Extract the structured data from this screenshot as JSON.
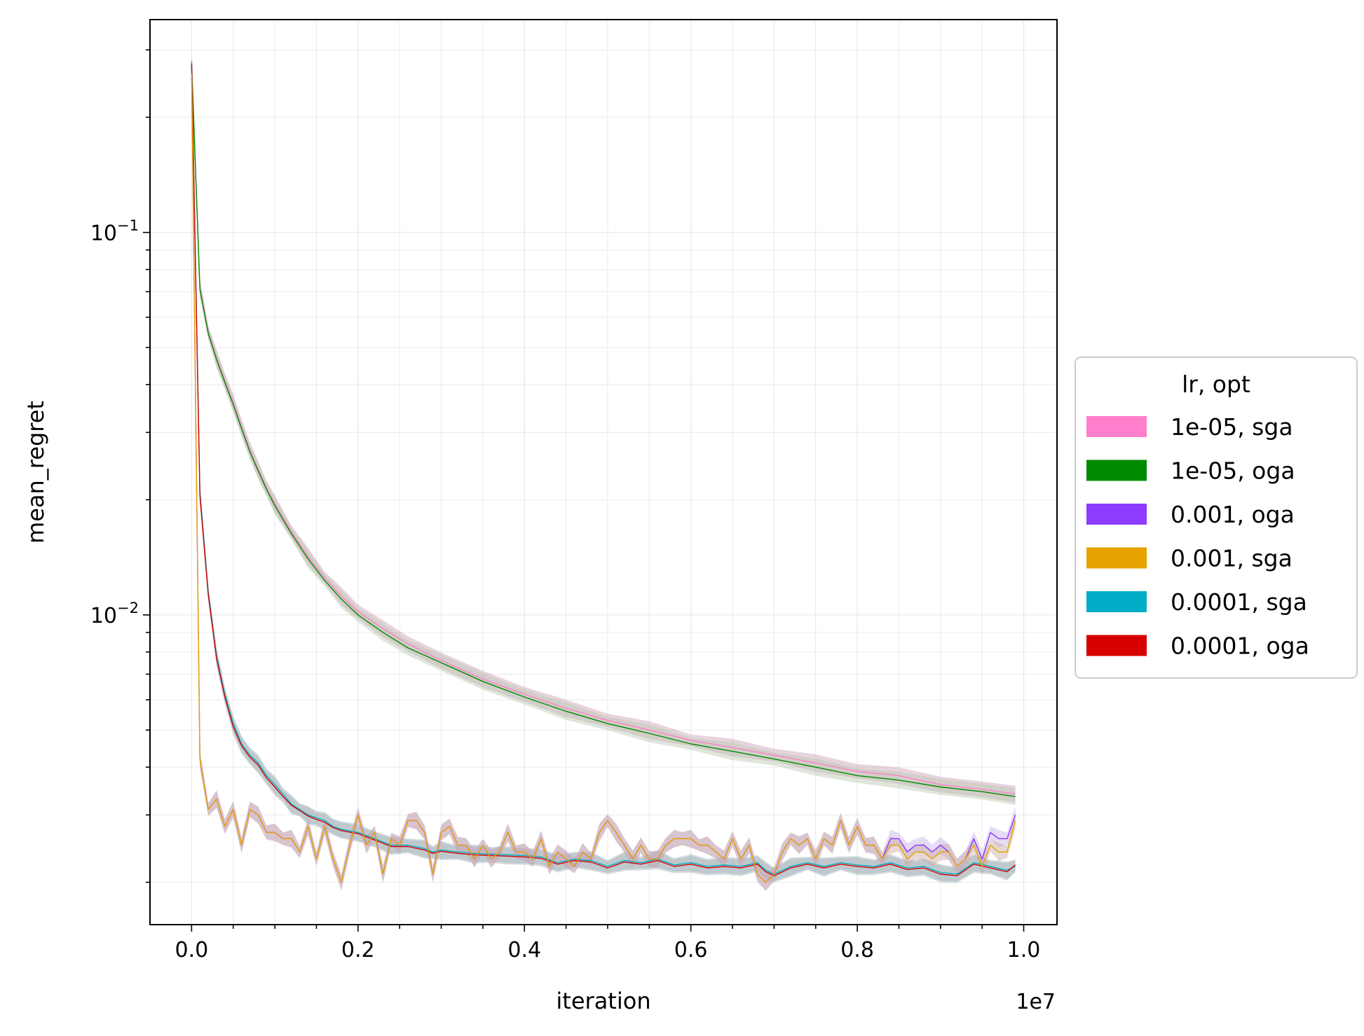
{
  "chart_data": {
    "type": "line",
    "xlabel": "iteration",
    "ylabel": "mean_regret",
    "x_offset_label": "1e7",
    "x_tick_labels": [
      "0.0",
      "0.2",
      "0.4",
      "0.6",
      "0.8",
      "1.0"
    ],
    "x_ticks": [
      0,
      2000000,
      4000000,
      6000000,
      8000000,
      10000000
    ],
    "xlim": [
      -500000,
      10400000
    ],
    "y_scale": "log",
    "ylim": [
      0.00155,
      0.36
    ],
    "y_tick_labels": [
      {
        "base": "10",
        "exp": "−1",
        "value": 0.1
      },
      {
        "base": "10",
        "exp": "−2",
        "value": 0.01
      }
    ],
    "grid": true,
    "legend": {
      "title": "lr, opt",
      "placement": "center-right-outside",
      "entries": [
        {
          "label": "1e-05, sga",
          "color": "#ff7fcc"
        },
        {
          "label": "1e-05, oga",
          "color": "#008a00"
        },
        {
          "label": "0.001, oga",
          "color": "#8c3bff"
        },
        {
          "label": "0.001, sga",
          "color": "#e8a200"
        },
        {
          "label": "0.0001, sga",
          "color": "#00acc6"
        },
        {
          "label": "0.0001, oga",
          "color": "#d60000"
        }
      ]
    },
    "series": [
      {
        "name": "1e-05, sga",
        "color": "#ff7fcc",
        "band": "#c9a0b4",
        "x": [
          0,
          100000,
          200000,
          300000,
          400000,
          500000,
          600000,
          700000,
          800000,
          900000,
          1000000,
          1200000,
          1400000,
          1600000,
          1800000,
          2000000,
          2300000,
          2600000,
          3000000,
          3500000,
          4000000,
          4500000,
          5000000,
          5500000,
          6000000,
          6500000,
          7000000,
          7500000,
          8000000,
          8500000,
          9000000,
          9500000,
          9900000
        ],
        "y": [
          0.28,
          0.072,
          0.055,
          0.047,
          0.041,
          0.036,
          0.031,
          0.027,
          0.024,
          0.0215,
          0.0195,
          0.0165,
          0.0142,
          0.0125,
          0.0112,
          0.0102,
          0.0092,
          0.0084,
          0.0076,
          0.0068,
          0.0062,
          0.0057,
          0.0053,
          0.005,
          0.0047,
          0.0045,
          0.0043,
          0.0041,
          0.0039,
          0.0038,
          0.0036,
          0.0035,
          0.0034
        ]
      },
      {
        "name": "1e-05, oga",
        "color": "#008a00",
        "band": "#b8c8b0",
        "x": [
          0,
          100000,
          200000,
          300000,
          400000,
          500000,
          600000,
          700000,
          800000,
          900000,
          1000000,
          1200000,
          1400000,
          1600000,
          1800000,
          2000000,
          2300000,
          2600000,
          3000000,
          3500000,
          4000000,
          4500000,
          5000000,
          5500000,
          6000000,
          6500000,
          7000000,
          7500000,
          8000000,
          8500000,
          9000000,
          9500000,
          9900000
        ],
        "y": [
          0.275,
          0.071,
          0.0545,
          0.0465,
          0.0405,
          0.0355,
          0.0307,
          0.0267,
          0.0238,
          0.0213,
          0.0193,
          0.0163,
          0.014,
          0.0123,
          0.011,
          0.01,
          0.009,
          0.0082,
          0.0075,
          0.0067,
          0.0061,
          0.0056,
          0.0052,
          0.0049,
          0.0046,
          0.0044,
          0.0042,
          0.004,
          0.0038,
          0.0037,
          0.00355,
          0.00345,
          0.00335
        ]
      },
      {
        "name": "0.0001, sga",
        "color": "#00acc6",
        "band": "#9ab0b8",
        "x": [
          0,
          100000,
          200000,
          300000,
          400000,
          500000,
          600000,
          700000,
          800000,
          900000,
          1000000,
          1100000,
          1200000,
          1300000,
          1400000,
          1500000,
          1600000,
          1700000,
          1800000,
          2000000,
          2200000,
          2400000,
          2600000,
          2800000,
          2900000,
          3000000,
          3200000,
          3400000,
          3600000,
          3800000,
          4000000,
          4200000,
          4400000,
          4600000,
          4800000,
          5000000,
          5200000,
          5400000,
          5600000,
          5800000,
          6000000,
          6200000,
          6400000,
          6600000,
          6800000,
          6900000,
          7000000,
          7200000,
          7400000,
          7600000,
          7800000,
          8000000,
          8200000,
          8400000,
          8600000,
          8800000,
          9000000,
          9200000,
          9400000,
          9600000,
          9800000,
          9900000
        ],
        "y": [
          0.28,
          0.021,
          0.0115,
          0.0078,
          0.0062,
          0.0052,
          0.0046,
          0.0043,
          0.0041,
          0.0038,
          0.0036,
          0.0034,
          0.0032,
          0.0031,
          0.003,
          0.00295,
          0.0029,
          0.0028,
          0.00275,
          0.0027,
          0.0026,
          0.0025,
          0.0025,
          0.00245,
          0.0024,
          0.00243,
          0.0024,
          0.00238,
          0.00237,
          0.00236,
          0.00235,
          0.00233,
          0.00225,
          0.0023,
          0.00228,
          0.0022,
          0.00228,
          0.00225,
          0.0023,
          0.00222,
          0.00225,
          0.0022,
          0.00222,
          0.0022,
          0.00225,
          0.00215,
          0.0021,
          0.0022,
          0.00225,
          0.0022,
          0.00225,
          0.00222,
          0.0022,
          0.00225,
          0.00218,
          0.0022,
          0.00212,
          0.0021,
          0.00225,
          0.0022,
          0.00215,
          0.0022
        ]
      },
      {
        "name": "0.0001, oga",
        "color": "#d60000",
        "band": "#a8b4b8",
        "x": [
          0,
          100000,
          200000,
          300000,
          400000,
          500000,
          600000,
          700000,
          800000,
          900000,
          1000000,
          1100000,
          1200000,
          1300000,
          1400000,
          1500000,
          1600000,
          1700000,
          1800000,
          2000000,
          2200000,
          2400000,
          2600000,
          2800000,
          2900000,
          3000000,
          3200000,
          3400000,
          3600000,
          3800000,
          4000000,
          4200000,
          4400000,
          4600000,
          4800000,
          5000000,
          5200000,
          5400000,
          5600000,
          5800000,
          6000000,
          6200000,
          6400000,
          6600000,
          6800000,
          6900000,
          7000000,
          7200000,
          7400000,
          7600000,
          7800000,
          8000000,
          8200000,
          8400000,
          8600000,
          8800000,
          9000000,
          9200000,
          9400000,
          9600000,
          9800000,
          9900000
        ],
        "y": [
          0.275,
          0.0205,
          0.0113,
          0.0077,
          0.0061,
          0.0051,
          0.00455,
          0.00425,
          0.00405,
          0.00375,
          0.00355,
          0.00335,
          0.00318,
          0.00308,
          0.00298,
          0.00292,
          0.00287,
          0.00278,
          0.00273,
          0.00268,
          0.00258,
          0.00248,
          0.00248,
          0.00243,
          0.00238,
          0.00241,
          0.00238,
          0.00236,
          0.00235,
          0.00234,
          0.00233,
          0.00231,
          0.00223,
          0.00228,
          0.00226,
          0.00218,
          0.00226,
          0.00223,
          0.00228,
          0.0022,
          0.00223,
          0.00218,
          0.0022,
          0.00218,
          0.00223,
          0.00213,
          0.00208,
          0.00218,
          0.00223,
          0.00218,
          0.00223,
          0.0022,
          0.00218,
          0.00223,
          0.00216,
          0.00218,
          0.0021,
          0.00208,
          0.00223,
          0.00218,
          0.00213,
          0.00222
        ]
      },
      {
        "name": "0.001, oga",
        "color": "#8c3bff",
        "band": "#c8b0e8",
        "x": [
          0,
          100000,
          200000,
          300000,
          400000,
          500000,
          600000,
          700000,
          800000,
          900000,
          1000000,
          1100000,
          1200000,
          1300000,
          1400000,
          1500000,
          1600000,
          1700000,
          1800000,
          1900000,
          2000000,
          2100000,
          2200000,
          2300000,
          2400000,
          2500000,
          2600000,
          2700000,
          2800000,
          2900000,
          3000000,
          3100000,
          3200000,
          3300000,
          3400000,
          3500000,
          3600000,
          3700000,
          3800000,
          3900000,
          4000000,
          4100000,
          4200000,
          4300000,
          4400000,
          4500000,
          4600000,
          4700000,
          4800000,
          4900000,
          5000000,
          5100000,
          5200000,
          5300000,
          5400000,
          5500000,
          5600000,
          5700000,
          5800000,
          5900000,
          6000000,
          6100000,
          6200000,
          6300000,
          6400000,
          6500000,
          6600000,
          6700000,
          6800000,
          6900000,
          7000000,
          7100000,
          7200000,
          7300000,
          7400000,
          7500000,
          7600000,
          7700000,
          7800000,
          7900000,
          8000000,
          8100000,
          8200000,
          8300000,
          8400000,
          8500000,
          8600000,
          8700000,
          8800000,
          8900000,
          9000000,
          9100000,
          9200000,
          9300000,
          9400000,
          9500000,
          9600000,
          9700000,
          9800000,
          9900000
        ],
        "y": [
          0.26,
          0.0042,
          0.0031,
          0.0033,
          0.0028,
          0.0031,
          0.0025,
          0.0031,
          0.003,
          0.0027,
          0.0027,
          0.0026,
          0.0026,
          0.0024,
          0.0028,
          0.0023,
          0.0028,
          0.0023,
          0.002,
          0.0025,
          0.003,
          0.0025,
          0.0027,
          0.0021,
          0.0026,
          0.0025,
          0.0029,
          0.0029,
          0.0027,
          0.0021,
          0.0027,
          0.0028,
          0.0025,
          0.0025,
          0.0023,
          0.0025,
          0.0023,
          0.0024,
          0.0027,
          0.0024,
          0.0024,
          0.0023,
          0.0026,
          0.0022,
          0.0024,
          0.0023,
          0.0022,
          0.0024,
          0.0023,
          0.0027,
          0.0029,
          0.0027,
          0.0025,
          0.0023,
          0.0025,
          0.0023,
          0.0023,
          0.0025,
          0.0026,
          0.0026,
          0.0026,
          0.0025,
          0.0025,
          0.0024,
          0.0023,
          0.0026,
          0.0023,
          0.0025,
          0.0021,
          0.002,
          0.0021,
          0.0024,
          0.0026,
          0.0025,
          0.0026,
          0.0023,
          0.0026,
          0.0025,
          0.0029,
          0.0025,
          0.0028,
          0.0025,
          0.0025,
          0.0023,
          0.0026,
          0.0026,
          0.0024,
          0.0025,
          0.0025,
          0.0024,
          0.0025,
          0.0024,
          0.0022,
          0.0023,
          0.0026,
          0.0023,
          0.0027,
          0.0026,
          0.0026,
          0.003
        ]
      },
      {
        "name": "0.001, sga",
        "color": "#e8a200",
        "band": "#c8a8a0",
        "x": [
          0,
          100000,
          200000,
          300000,
          400000,
          500000,
          600000,
          700000,
          800000,
          900000,
          1000000,
          1100000,
          1200000,
          1300000,
          1400000,
          1500000,
          1600000,
          1700000,
          1800000,
          1900000,
          2000000,
          2100000,
          2200000,
          2300000,
          2400000,
          2500000,
          2600000,
          2700000,
          2800000,
          2900000,
          3000000,
          3100000,
          3200000,
          3300000,
          3400000,
          3500000,
          3600000,
          3700000,
          3800000,
          3900000,
          4000000,
          4100000,
          4200000,
          4300000,
          4400000,
          4500000,
          4600000,
          4700000,
          4800000,
          4900000,
          5000000,
          5100000,
          5200000,
          5300000,
          5400000,
          5500000,
          5600000,
          5700000,
          5800000,
          5900000,
          6000000,
          6100000,
          6200000,
          6300000,
          6400000,
          6500000,
          6600000,
          6700000,
          6800000,
          6900000,
          7000000,
          7100000,
          7200000,
          7300000,
          7400000,
          7500000,
          7600000,
          7700000,
          7800000,
          7900000,
          8000000,
          8100000,
          8200000,
          8300000,
          8400000,
          8500000,
          8600000,
          8700000,
          8800000,
          8900000,
          9000000,
          9100000,
          9200000,
          9300000,
          9400000,
          9500000,
          9600000,
          9700000,
          9800000,
          9900000
        ],
        "y": [
          0.26,
          0.0042,
          0.0031,
          0.0033,
          0.0028,
          0.0031,
          0.0025,
          0.0031,
          0.003,
          0.0027,
          0.0027,
          0.0026,
          0.0026,
          0.0024,
          0.0028,
          0.0023,
          0.0028,
          0.0023,
          0.002,
          0.0025,
          0.003,
          0.0025,
          0.0027,
          0.0021,
          0.0026,
          0.0025,
          0.0029,
          0.0029,
          0.0027,
          0.0021,
          0.0027,
          0.0028,
          0.0025,
          0.0025,
          0.0023,
          0.0025,
          0.0023,
          0.0024,
          0.0027,
          0.0024,
          0.0024,
          0.0023,
          0.0026,
          0.0022,
          0.0024,
          0.0023,
          0.0022,
          0.0024,
          0.0023,
          0.0027,
          0.0029,
          0.0027,
          0.0025,
          0.0023,
          0.0025,
          0.0023,
          0.0023,
          0.0025,
          0.0026,
          0.0026,
          0.0026,
          0.0025,
          0.0025,
          0.0024,
          0.0023,
          0.0026,
          0.0023,
          0.0025,
          0.0021,
          0.002,
          0.0021,
          0.0024,
          0.0026,
          0.0025,
          0.0026,
          0.0023,
          0.0026,
          0.0025,
          0.0029,
          0.0025,
          0.0028,
          0.0025,
          0.0025,
          0.0023,
          0.0025,
          0.0025,
          0.0023,
          0.0024,
          0.0024,
          0.0023,
          0.0024,
          0.0024,
          0.0022,
          0.0023,
          0.0025,
          0.0022,
          0.0025,
          0.0024,
          0.0024,
          0.0029
        ]
      }
    ]
  }
}
